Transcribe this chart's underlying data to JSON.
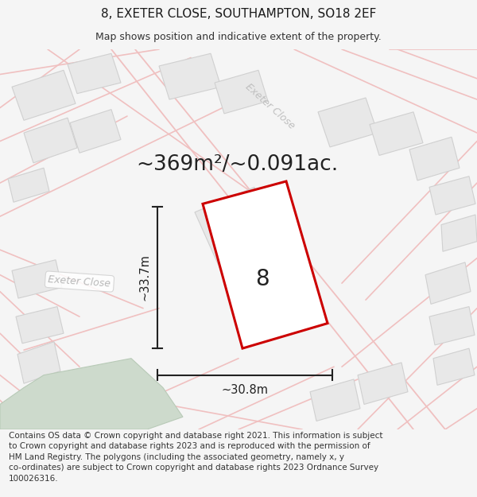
{
  "title_line1": "8, EXETER CLOSE, SOUTHAMPTON, SO18 2EF",
  "title_line2": "Map shows position and indicative extent of the property.",
  "area_label": "~369m²/~0.091ac.",
  "number_label": "8",
  "dim_vertical": "~33.7m",
  "dim_horizontal": "~30.8m",
  "road_label_1": "Exeter Close",
  "road_label_2": "Exeter Close",
  "footer_text": "Contains OS data © Crown copyright and database right 2021. This information is subject\nto Crown copyright and database rights 2023 and is reproduced with the permission of\nHM Land Registry. The polygons (including the associated geometry, namely x, y\nco-ordinates) are subject to Crown copyright and database rights 2023 Ordnance Survey\n100026316.",
  "bg_color": "#f5f5f5",
  "map_bg": "#ffffff",
  "road_color": "#f0c0c0",
  "building_fill": "#e8e8e8",
  "building_edge": "#d0d0d0",
  "green_fill": "#cddacc",
  "green_edge": "#b8cab7",
  "highlight_color": "#cc0000",
  "road_label_color": "#c0c0c0",
  "dim_color": "#222222",
  "text_color": "#222222",
  "title_fontsize": 11,
  "subtitle_fontsize": 9,
  "area_fontsize": 19,
  "number_fontsize": 20,
  "dim_fontsize": 10.5,
  "road_label_fontsize": 9,
  "footer_fontsize": 7.5,
  "map_road_lw": 1.2,
  "prop_lw": 2.2
}
